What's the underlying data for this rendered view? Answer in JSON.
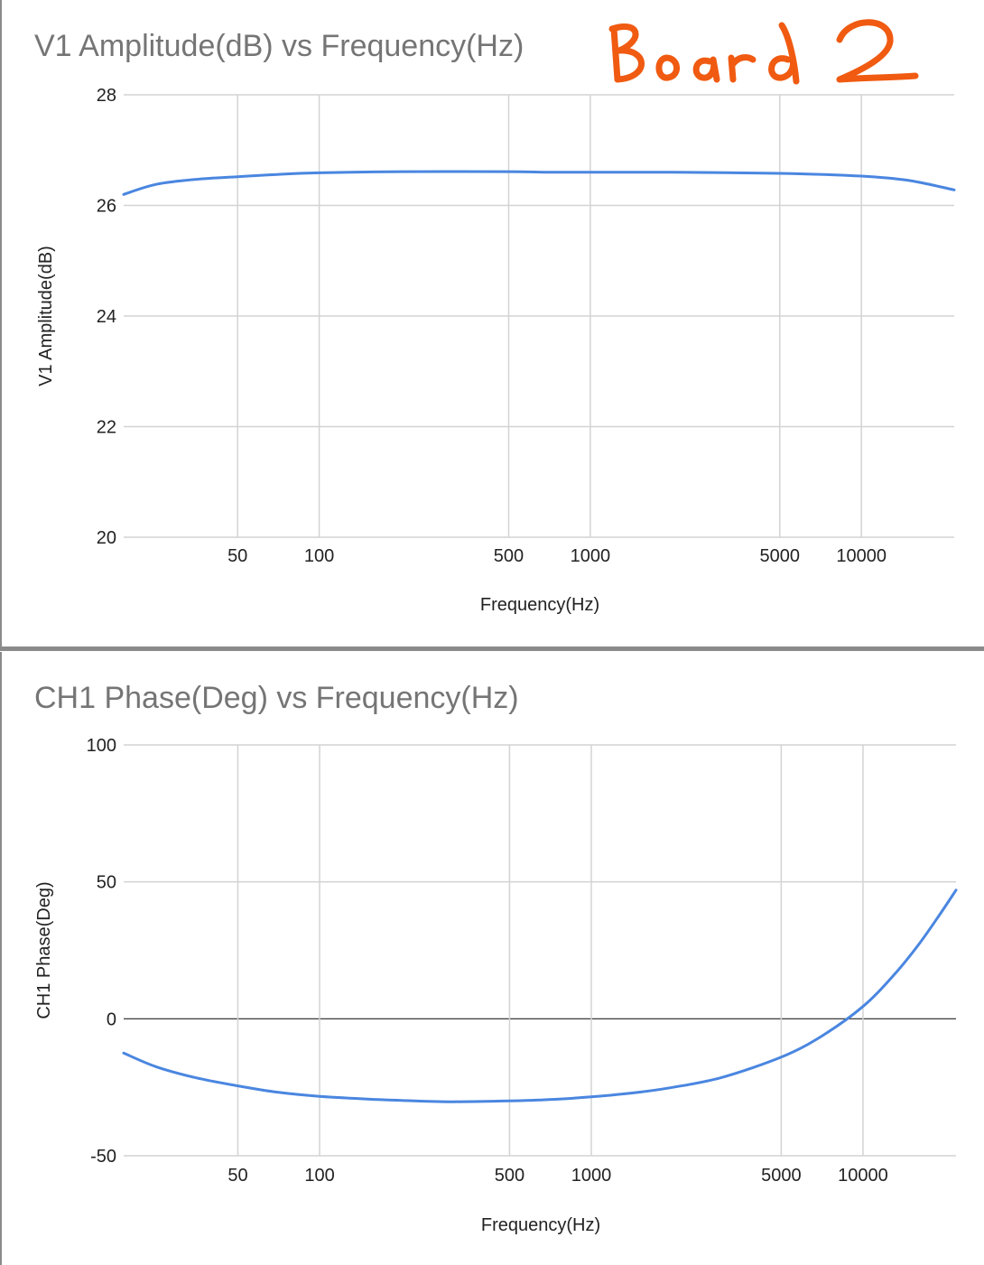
{
  "colors": {
    "series": "#4a86e0",
    "grid": "#d3d3d3",
    "annotation": "#f05a11",
    "title": "#757575"
  },
  "annotation": {
    "text": "Board 2",
    "style": "handwritten"
  },
  "chart_data": [
    {
      "type": "line",
      "title": "V1 Amplitude(dB) vs Frequency(Hz)",
      "xlabel": "Frequency(Hz)",
      "ylabel": "V1 Amplitude(dB)",
      "x_scale": "log",
      "xlim": [
        19,
        22000
      ],
      "ylim": [
        20,
        28
      ],
      "grid": true,
      "legend": "none",
      "x_ticks": [
        50,
        100,
        500,
        1000,
        5000,
        10000
      ],
      "y_ticks": [
        20,
        22,
        24,
        26,
        28
      ],
      "series": [
        {
          "x": [
            19,
            25,
            35,
            50,
            70,
            100,
            200,
            500,
            700,
            1000,
            2000,
            5000,
            10000,
            15000,
            22000
          ],
          "y": [
            26.2,
            26.38,
            26.47,
            26.52,
            26.56,
            26.59,
            26.61,
            26.61,
            26.6,
            26.6,
            26.6,
            26.58,
            26.53,
            26.45,
            26.28
          ]
        }
      ]
    },
    {
      "type": "line",
      "title": "CH1 Phase(Deg) vs Frequency(Hz)",
      "xlabel": "Frequency(Hz)",
      "ylabel": "CH1 Phase(Deg)",
      "x_scale": "log",
      "xlim": [
        19,
        22000
      ],
      "ylim": [
        -50,
        100
      ],
      "grid": true,
      "legend": "none",
      "x_ticks": [
        50,
        100,
        500,
        1000,
        5000,
        10000
      ],
      "y_ticks": [
        -50,
        0,
        50,
        100
      ],
      "series": [
        {
          "x": [
            19,
            25,
            35,
            50,
            70,
            100,
            150,
            200,
            300,
            500,
            700,
            1000,
            1500,
            2000,
            3000,
            5000,
            7000,
            10000,
            13000,
            16000,
            19000,
            22000
          ],
          "y": [
            -12.5,
            -17.5,
            -21.5,
            -24.5,
            -26.8,
            -28.3,
            -29.3,
            -29.8,
            -30.3,
            -30.0,
            -29.5,
            -28.5,
            -26.8,
            -25.0,
            -21.5,
            -14.0,
            -6.5,
            4.5,
            16.0,
            27.0,
            37.5,
            47.0
          ]
        }
      ]
    }
  ]
}
